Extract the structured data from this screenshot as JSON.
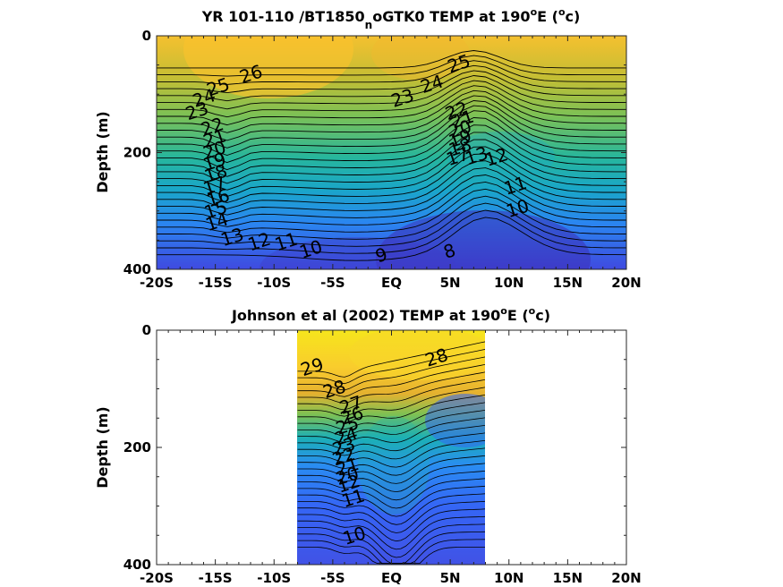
{
  "chart_data": [
    {
      "type": "contour",
      "title": "YR 101-110 /BT1850",
      "title_sub": "n",
      "title_rest": "oGTK0 TEMP at 190",
      "title_deg": "o",
      "title_after": "E (",
      "title_unit_sup": "o",
      "title_unit": "c)",
      "xlabel": "",
      "ylabel": "Depth (m)",
      "x_ticks": [
        "-20S",
        "-15S",
        "-10S",
        "-5S",
        "EQ",
        "5N",
        "10N",
        "15N",
        "20N"
      ],
      "x_range": [
        -20,
        20
      ],
      "y_ticks": [
        "0",
        "200",
        "400"
      ],
      "y_range": [
        0,
        400
      ],
      "y_reversed": true,
      "data_extent_lat": [
        -20,
        20
      ],
      "colormap": [
        "#3e26a8",
        "#4a4de8",
        "#2f7dfb",
        "#1da2d8",
        "#1bb7b1",
        "#58bf85",
        "#a3bd3b",
        "#e3b52e",
        "#fac12c",
        "#f5e61d"
      ],
      "color_range": [
        8,
        29
      ],
      "contour_labels": [
        {
          "text": "26",
          "lat": -11.8,
          "depth": 65
        },
        {
          "text": "25",
          "lat": -14.6,
          "depth": 87
        },
        {
          "text": "24",
          "lat": -15.8,
          "depth": 106
        },
        {
          "text": "23",
          "lat": -16.4,
          "depth": 128
        },
        {
          "text": "22",
          "lat": -15.1,
          "depth": 155
        },
        {
          "text": "21",
          "lat": -14.9,
          "depth": 175
        },
        {
          "text": "20",
          "lat": -14.9,
          "depth": 195
        },
        {
          "text": "19",
          "lat": -14.9,
          "depth": 215
        },
        {
          "text": "18",
          "lat": -14.8,
          "depth": 235
        },
        {
          "text": "17",
          "lat": -14.9,
          "depth": 256
        },
        {
          "text": "16",
          "lat": -14.6,
          "depth": 277
        },
        {
          "text": "15",
          "lat": -14.8,
          "depth": 297
        },
        {
          "text": "14",
          "lat": -14.7,
          "depth": 318
        },
        {
          "text": "13",
          "lat": -13.4,
          "depth": 344
        },
        {
          "text": "12",
          "lat": -11.1,
          "depth": 352
        },
        {
          "text": "11",
          "lat": -8.8,
          "depth": 352
        },
        {
          "text": "10",
          "lat": -6.7,
          "depth": 365
        },
        {
          "text": "9",
          "lat": -0.7,
          "depth": 375
        },
        {
          "text": "8",
          "lat": 5.1,
          "depth": 368
        },
        {
          "text": "25",
          "lat": 5.9,
          "depth": 47
        },
        {
          "text": "24",
          "lat": 3.6,
          "depth": 82
        },
        {
          "text": "23",
          "lat": 1.1,
          "depth": 106
        },
        {
          "text": "22",
          "lat": 5.7,
          "depth": 128
        },
        {
          "text": "21",
          "lat": 6.2,
          "depth": 142
        },
        {
          "text": "20",
          "lat": 6.0,
          "depth": 159
        },
        {
          "text": "19",
          "lat": 6.0,
          "depth": 175
        },
        {
          "text": "18",
          "lat": 6.0,
          "depth": 190
        },
        {
          "text": "17",
          "lat": 5.8,
          "depth": 206
        },
        {
          "text": "13",
          "lat": 7.4,
          "depth": 205
        },
        {
          "text": "12",
          "lat": 9.1,
          "depth": 207
        },
        {
          "text": "11",
          "lat": 10.7,
          "depth": 256
        },
        {
          "text": "10",
          "lat": 10.9,
          "depth": 295
        }
      ]
    },
    {
      "type": "contour",
      "title": "Johnson et al (2002) TEMP at 190",
      "title_deg": "o",
      "title_after": "E (",
      "title_unit_sup": "o",
      "title_unit": "c)",
      "xlabel": "",
      "ylabel": "Depth (m)",
      "x_ticks": [
        "-20S",
        "-15S",
        "-10S",
        "-5S",
        "EQ",
        "5N",
        "10N",
        "15N",
        "20N"
      ],
      "x_range": [
        -20,
        20
      ],
      "y_ticks": [
        "0",
        "200",
        "400"
      ],
      "y_range": [
        0,
        400
      ],
      "y_reversed": true,
      "data_extent_lat": [
        -8,
        8
      ],
      "colormap": [
        "#3e26a8",
        "#4a4de8",
        "#2f7dfb",
        "#1da2d8",
        "#1bb7b1",
        "#58bf85",
        "#a3bd3b",
        "#e3b52e",
        "#fac12c",
        "#f5e61d"
      ],
      "color_range": [
        8,
        29
      ],
      "contour_labels": [
        {
          "text": "29",
          "lat": -6.6,
          "depth": 62
        },
        {
          "text": "28",
          "lat": -4.7,
          "depth": 100
        },
        {
          "text": "27",
          "lat": -3.3,
          "depth": 127
        },
        {
          "text": "26",
          "lat": -3.2,
          "depth": 145
        },
        {
          "text": "25",
          "lat": -3.6,
          "depth": 162
        },
        {
          "text": "24",
          "lat": -3.7,
          "depth": 180
        },
        {
          "text": "23",
          "lat": -3.9,
          "depth": 198
        },
        {
          "text": "22",
          "lat": -3.9,
          "depth": 215
        },
        {
          "text": "21",
          "lat": -3.6,
          "depth": 232
        },
        {
          "text": "20",
          "lat": -3.6,
          "depth": 248
        },
        {
          "text": "12",
          "lat": -3.5,
          "depth": 261
        },
        {
          "text": "11",
          "lat": -3.1,
          "depth": 286
        },
        {
          "text": "10",
          "lat": -3.0,
          "depth": 350
        },
        {
          "text": "28",
          "lat": 4.0,
          "depth": 46
        }
      ]
    }
  ]
}
